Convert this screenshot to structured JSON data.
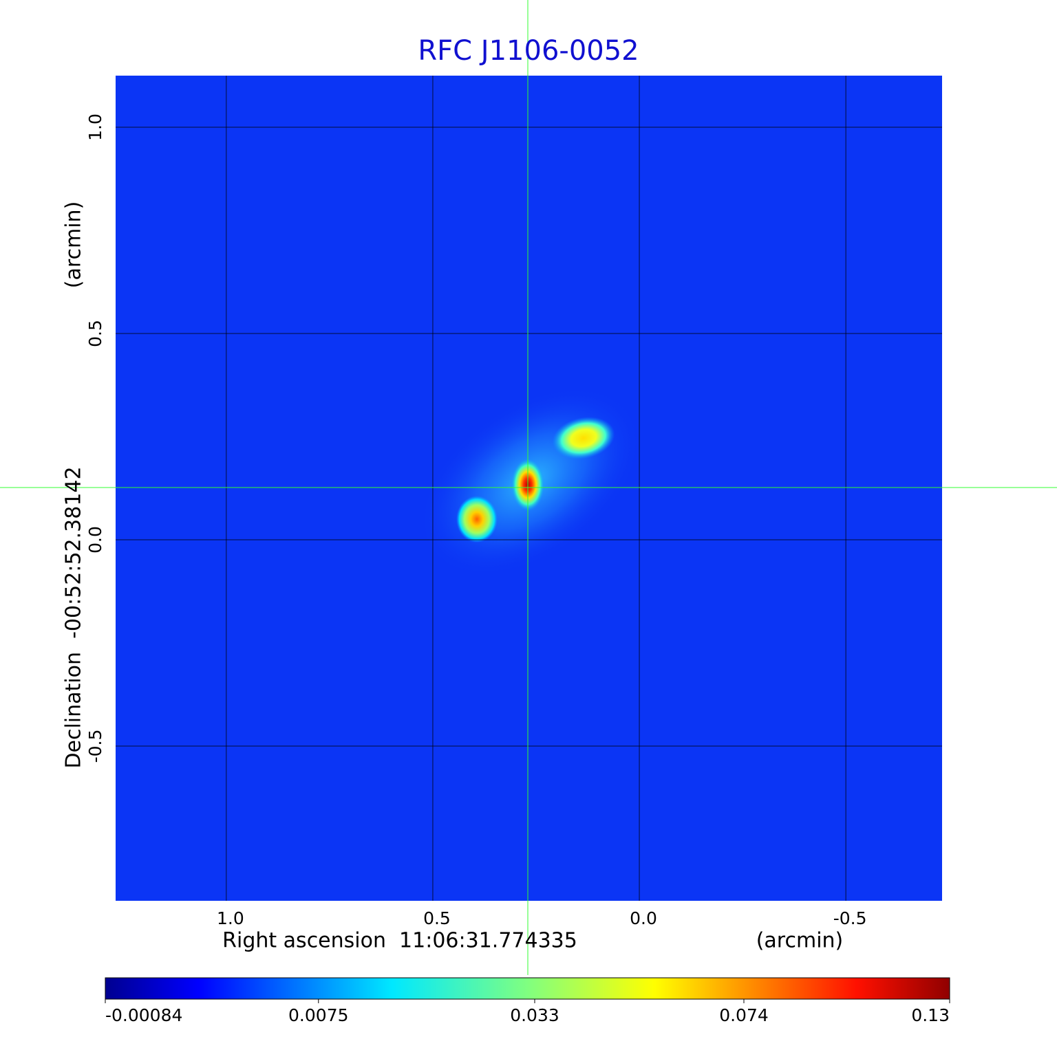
{
  "chart_data": {
    "type": "image",
    "title": "RFC J1106-0052",
    "x_label": "Right ascension  11:06:31.774335",
    "x_unit": "(arcmin)",
    "y_label": "Declination  -00:52:52.38142",
    "y_unit": "(arcmin)",
    "xlim": [
      1.268,
      -0.733
    ],
    "xticks": [
      {
        "value": 1,
        "label": "1.0"
      },
      0.5,
      {
        "value": 0,
        "label": "0.0"
      },
      -0.5
    ],
    "ylim": [
      -0.875,
      1.125
    ],
    "yticks": [
      {
        "value": 1,
        "label": "1.0"
      },
      0.5,
      {
        "value": 0,
        "label": "0.0"
      },
      -0.5
    ],
    "grid": true,
    "colorbar": {
      "lim": [
        -0.00084,
        0.13
      ],
      "scale": "sqrt",
      "ticks": [
        -0.00084,
        0.0075,
        0.033,
        0.074,
        0.13
      ]
    }
  }
}
